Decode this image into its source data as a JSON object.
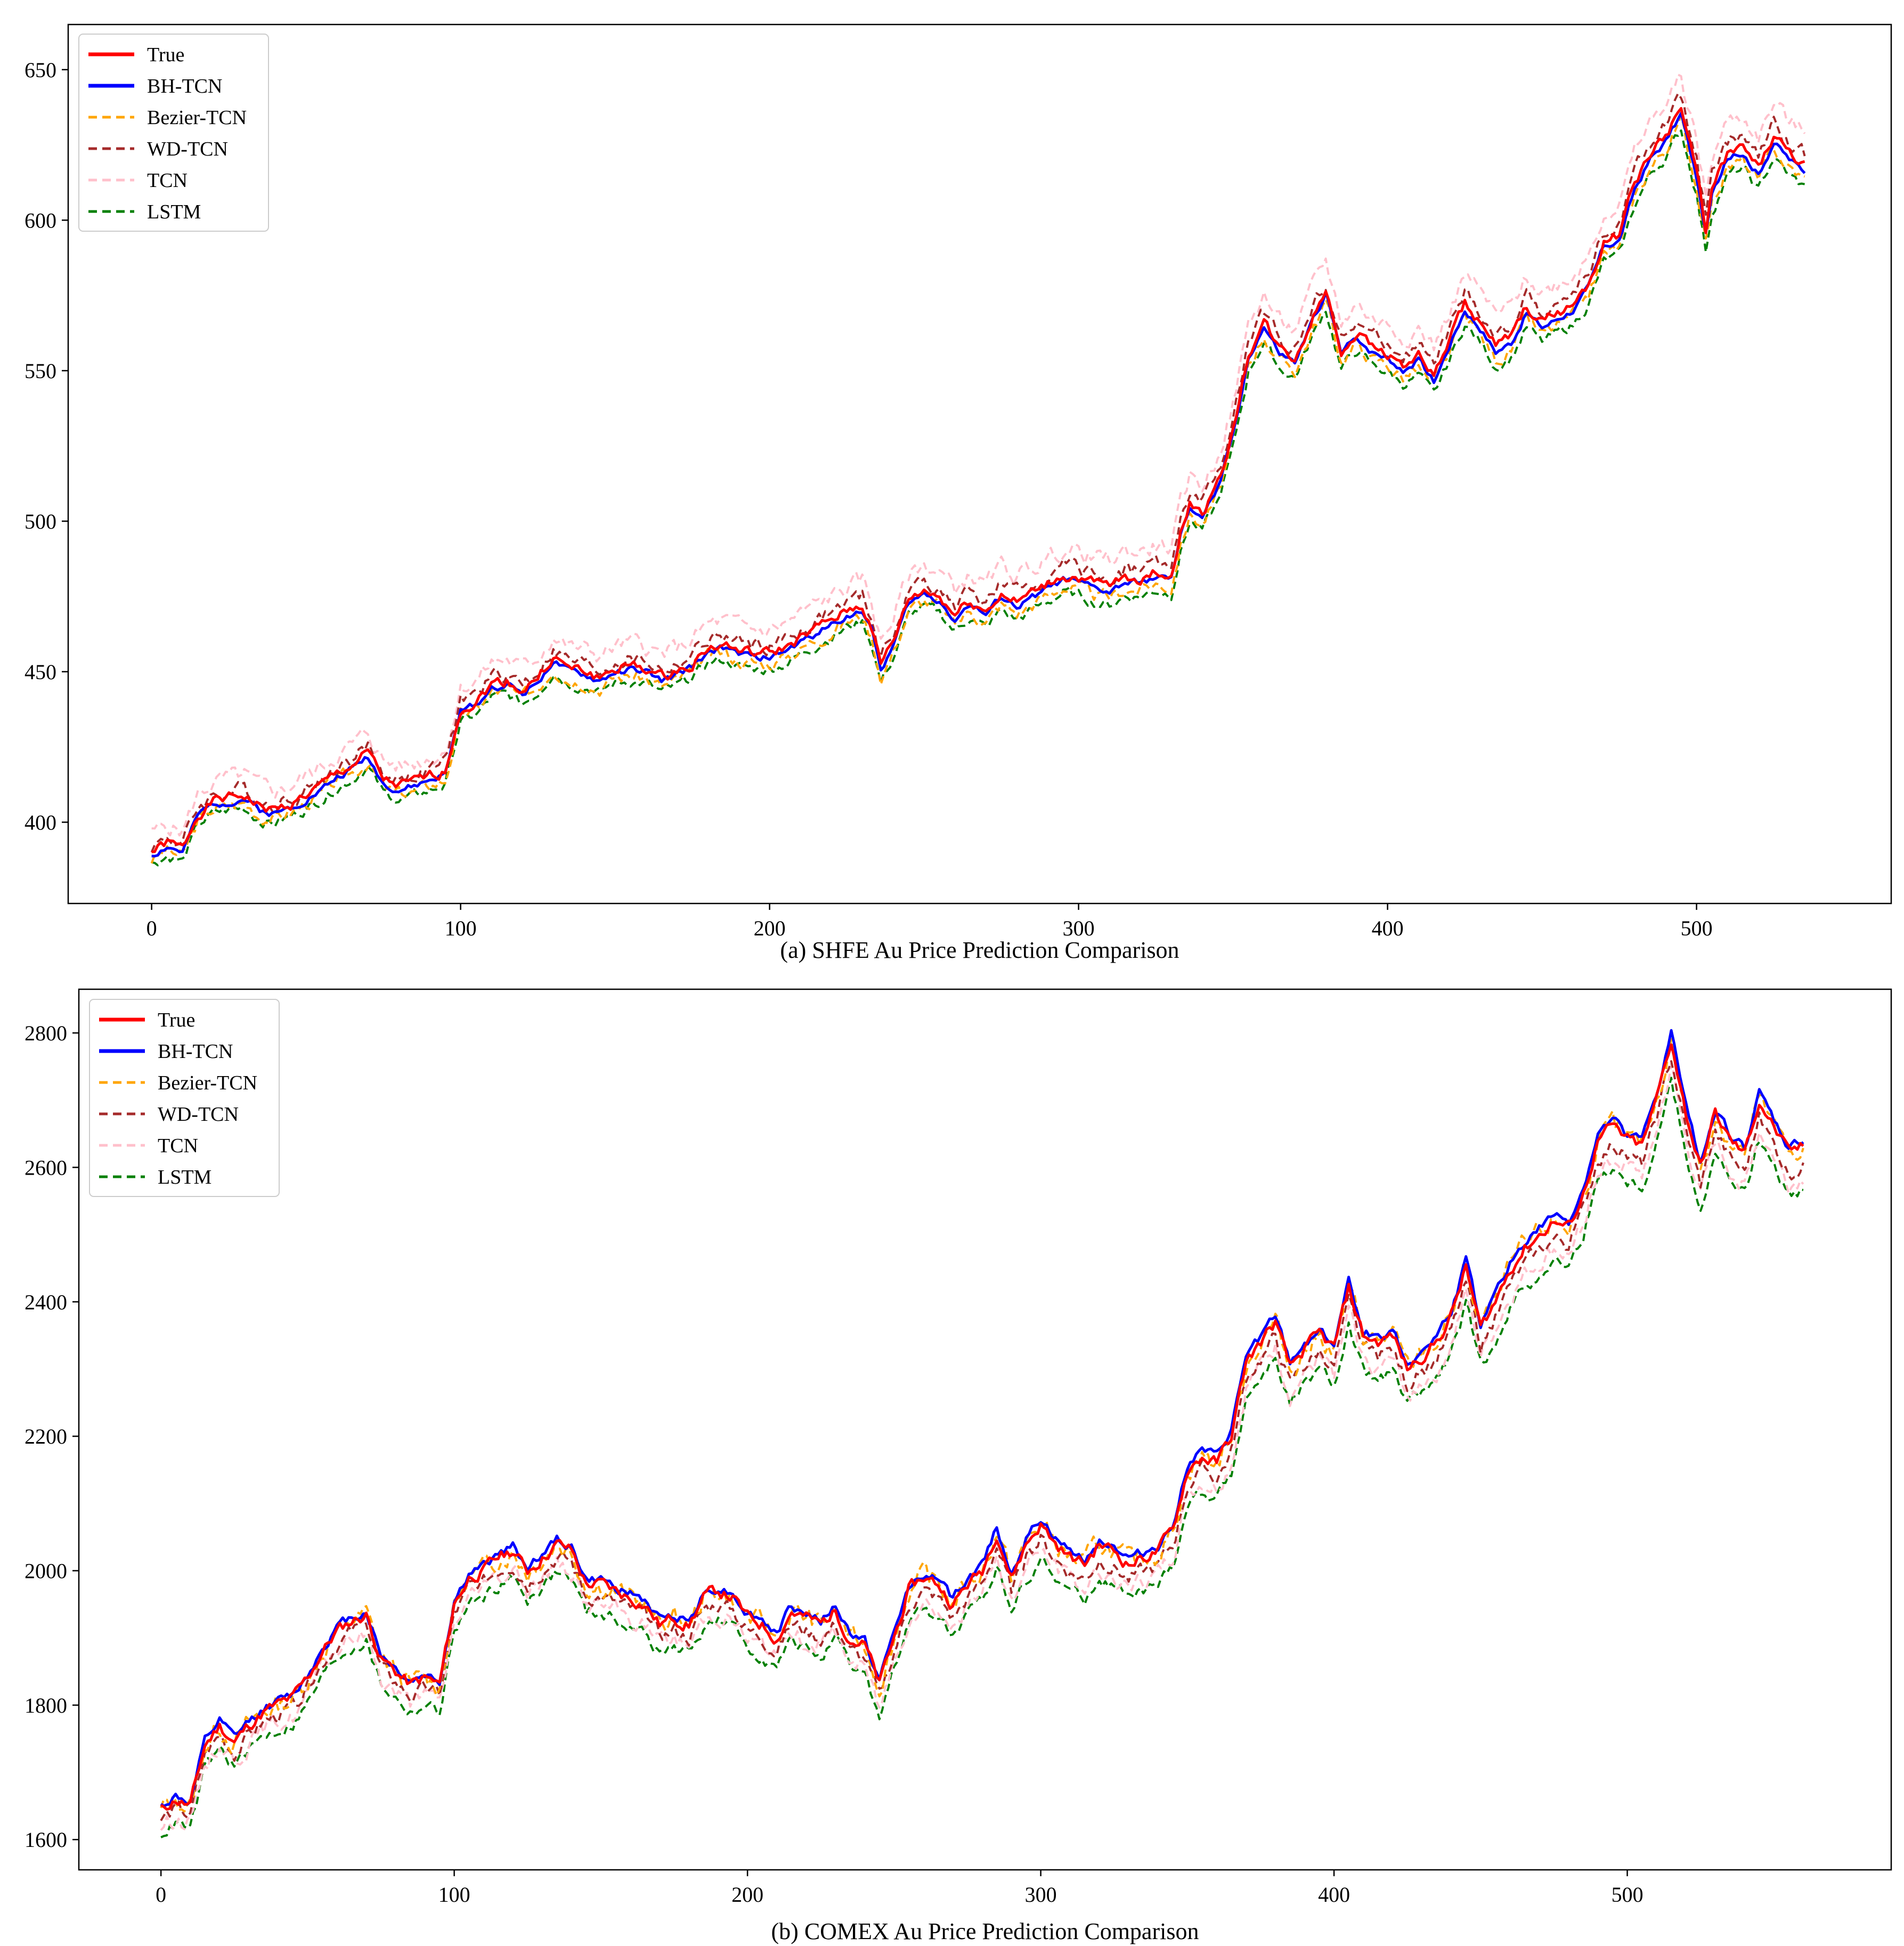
{
  "chart_data": [
    {
      "type": "line",
      "caption": "(a) SHFE Au Price Prediction Comparison",
      "xlim": [
        -27,
        563
      ],
      "ylim": [
        373,
        665
      ],
      "xticks": [
        0,
        100,
        200,
        300,
        400,
        500
      ],
      "yticks": [
        400,
        450,
        500,
        550,
        600,
        650
      ],
      "legend": "top-left",
      "grid": false,
      "true_anchors": {
        "x": [
          0,
          5,
          10,
          15,
          20,
          25,
          30,
          35,
          40,
          45,
          50,
          55,
          60,
          65,
          70,
          75,
          80,
          85,
          90,
          95,
          100,
          105,
          110,
          115,
          120,
          125,
          130,
          135,
          140,
          145,
          150,
          155,
          160,
          165,
          170,
          175,
          180,
          185,
          190,
          195,
          200,
          205,
          210,
          215,
          220,
          225,
          230,
          233,
          236,
          240,
          245,
          250,
          255,
          260,
          265,
          270,
          275,
          280,
          285,
          290,
          295,
          300,
          305,
          310,
          315,
          320,
          325,
          330,
          333,
          336,
          340,
          345,
          350,
          355,
          360,
          365,
          370,
          375,
          380,
          385,
          390,
          395,
          400,
          405,
          410,
          415,
          420,
          425,
          430,
          435,
          440,
          445,
          450,
          455,
          460,
          465,
          470,
          475,
          480,
          485,
          490,
          495,
          500,
          503,
          505,
          510,
          515,
          520,
          525,
          530,
          535
        ],
        "y": [
          390,
          393,
          391,
          403,
          407,
          408,
          409,
          405,
          404,
          406,
          409,
          412,
          416,
          419,
          423,
          414,
          412,
          413,
          415,
          417,
          438,
          440,
          446,
          447,
          444,
          448,
          455,
          451,
          450,
          448,
          451,
          452,
          451,
          448,
          450,
          453,
          458,
          459,
          457,
          456,
          456,
          458,
          461,
          464,
          467,
          470,
          472,
          465,
          452,
          460,
          474,
          477,
          475,
          469,
          474,
          470,
          476,
          473,
          476,
          479,
          482,
          481,
          479,
          478,
          481,
          481,
          483,
          482,
          496,
          506,
          503,
          512,
          530,
          556,
          566,
          557,
          554,
          566,
          577,
          557,
          563,
          558,
          556,
          552,
          555,
          548,
          560,
          572,
          566,
          558,
          561,
          571,
          566,
          569,
          572,
          579,
          593,
          595,
          612,
          622,
          628,
          637,
          616,
          597,
          610,
          622,
          624,
          617,
          628,
          622,
          618
        ]
      },
      "series": [
        {
          "name": "True",
          "color": "#ff0000",
          "style": "solid",
          "offset": 0,
          "amp": 1.5,
          "seed": 1
        },
        {
          "name": "BH-TCN",
          "color": "#0000ff",
          "style": "solid",
          "offset": -1.0,
          "amp": 1.0,
          "seed": 2
        },
        {
          "name": "Bezier-TCN",
          "color": "#ffa500",
          "style": "dashed",
          "offset": -2.5,
          "amp": 2.0,
          "seed": 3
        },
        {
          "name": "WD-TCN",
          "color": "#a52a2a",
          "style": "dashed",
          "offset": 2.0,
          "amp": 2.2,
          "seed": 4
        },
        {
          "name": "TCN",
          "color": "#ffc0cb",
          "style": "dashed",
          "offset": 6.0,
          "amp": 2.5,
          "seed": 5
        },
        {
          "name": "LSTM",
          "color": "#008000",
          "style": "dashed",
          "offset": -4.0,
          "amp": 1.5,
          "seed": 6
        }
      ]
    },
    {
      "type": "line",
      "caption": "(b) COMEX Au Price Prediction Comparison",
      "xlim": [
        -28,
        590
      ],
      "ylim": [
        1555,
        2865
      ],
      "xticks": [
        0,
        100,
        200,
        300,
        400,
        500
      ],
      "yticks": [
        1600,
        1800,
        2000,
        2200,
        2400,
        2600,
        2800
      ],
      "legend": "top-left",
      "grid": false,
      "true_anchors": {
        "x": [
          0,
          5,
          10,
          15,
          20,
          25,
          30,
          35,
          40,
          45,
          50,
          55,
          60,
          65,
          70,
          75,
          80,
          85,
          90,
          95,
          100,
          105,
          110,
          115,
          120,
          125,
          130,
          135,
          140,
          145,
          150,
          155,
          160,
          165,
          170,
          175,
          180,
          185,
          190,
          195,
          200,
          205,
          210,
          215,
          220,
          225,
          230,
          235,
          240,
          245,
          250,
          255,
          260,
          265,
          270,
          275,
          280,
          285,
          290,
          295,
          300,
          305,
          310,
          315,
          320,
          325,
          330,
          335,
          340,
          345,
          350,
          355,
          360,
          365,
          370,
          375,
          380,
          385,
          390,
          395,
          400,
          405,
          410,
          415,
          420,
          425,
          430,
          435,
          440,
          445,
          450,
          455,
          460,
          465,
          470,
          475,
          480,
          485,
          490,
          495,
          500,
          505,
          510,
          515,
          520,
          525,
          530,
          535,
          540,
          545,
          550,
          555,
          560
        ],
        "y": [
          1645,
          1660,
          1650,
          1740,
          1770,
          1745,
          1770,
          1790,
          1800,
          1810,
          1840,
          1880,
          1910,
          1925,
          1935,
          1870,
          1850,
          1830,
          1840,
          1830,
          1950,
          1990,
          2000,
          2020,
          2030,
          2000,
          2020,
          2040,
          2030,
          1980,
          1980,
          1970,
          1960,
          1950,
          1920,
          1930,
          1920,
          1960,
          1970,
          1960,
          1930,
          1920,
          1900,
          1940,
          1930,
          1920,
          1940,
          1900,
          1890,
          1830,
          1900,
          1970,
          1990,
          1980,
          1950,
          1980,
          2000,
          2060,
          1990,
          2040,
          2070,
          2040,
          2020,
          2010,
          2040,
          2030,
          2010,
          2020,
          2030,
          2060,
          2150,
          2170,
          2160,
          2200,
          2310,
          2340,
          2370,
          2300,
          2330,
          2350,
          2330,
          2420,
          2350,
          2340,
          2350,
          2300,
          2320,
          2340,
          2380,
          2450,
          2360,
          2400,
          2450,
          2480,
          2500,
          2520,
          2510,
          2560,
          2640,
          2660,
          2640,
          2630,
          2700,
          2790,
          2680,
          2600,
          2680,
          2640,
          2620,
          2700,
          2660,
          2620,
          2630
        ]
      },
      "series": [
        {
          "name": "True",
          "color": "#ff0000",
          "style": "solid",
          "offset": 0,
          "amp": 8,
          "seed": 11
        },
        {
          "name": "BH-TCN",
          "color": "#0000ff",
          "style": "solid",
          "offset": 5,
          "amp": 6,
          "seed": 12
        },
        {
          "name": "Bezier-TCN",
          "color": "#ffa500",
          "style": "dashed",
          "offset": 0,
          "amp": 14,
          "seed": 13
        },
        {
          "name": "WD-TCN",
          "color": "#a52a2a",
          "style": "dashed",
          "offset": -15,
          "amp": 10,
          "seed": 14
        },
        {
          "name": "TCN",
          "color": "#ffc0cb",
          "style": "dashed",
          "offset": -25,
          "amp": 12,
          "seed": 15
        },
        {
          "name": "LSTM",
          "color": "#008000",
          "style": "dashed",
          "offset": -35,
          "amp": 8,
          "seed": 16
        }
      ]
    }
  ]
}
